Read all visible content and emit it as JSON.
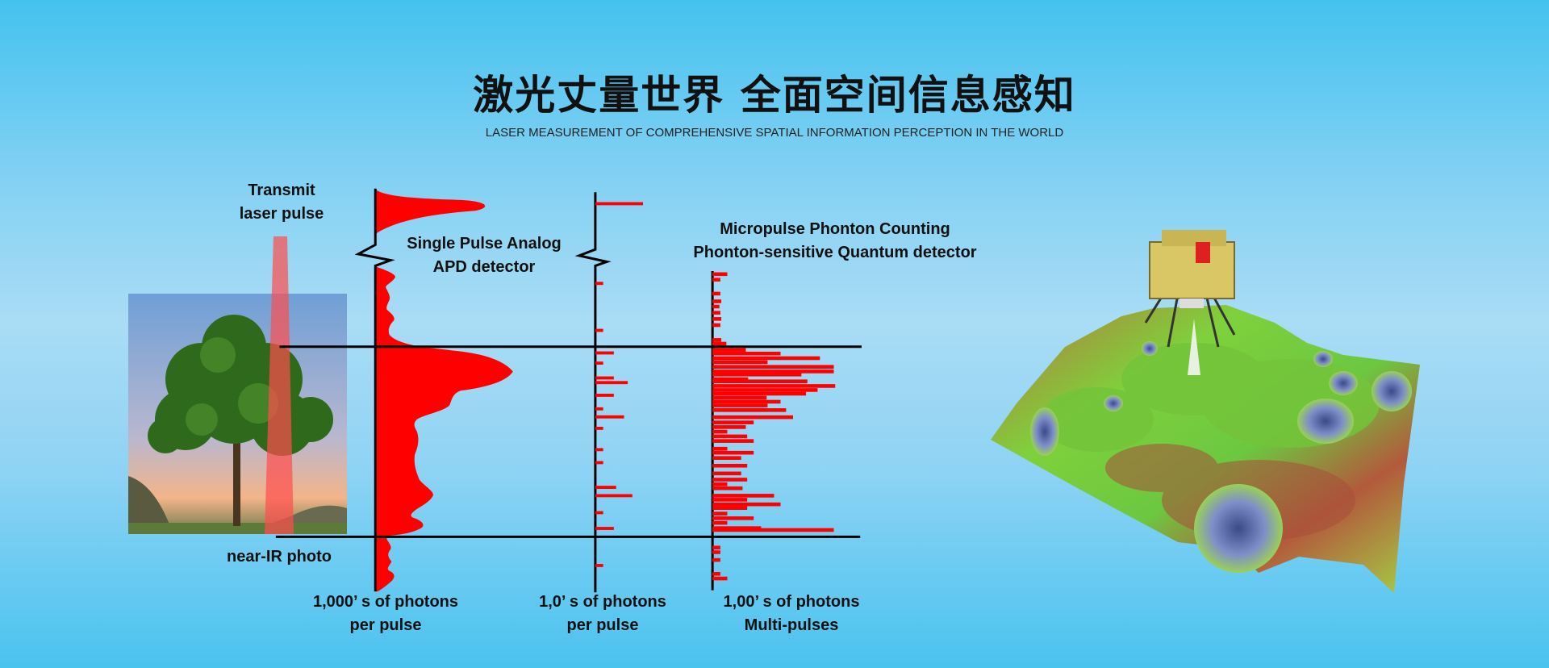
{
  "header": {
    "title": "激光丈量世界 全面空间信息感知",
    "subtitle": "LASER MEASUREMENT OF COMPREHENSIVE SPATIAL INFORMATION PERCEPTION IN THE WORLD"
  },
  "diagram": {
    "transmit_label": [
      "Transmit",
      "laser pulse"
    ],
    "photo_label": "near-IR photo",
    "analog_label": [
      "Single Pulse Analog",
      "APD detector"
    ],
    "micropulse_label": [
      "Micropulse Phonton Counting",
      "Phonton-sensitive Quantum detector"
    ],
    "axis_labels": [
      [
        "1,000’ s of photons",
        "per pulse"
      ],
      [
        "1,0’ s of photons",
        "per pulse"
      ],
      [
        "1,00’ s of photons",
        "Multi-pulses"
      ]
    ],
    "colors": {
      "signal": "#ff0000",
      "axis": "#000000",
      "beam": "#ff5a5a"
    }
  },
  "illustration": {
    "icons": [
      "tree-photo",
      "lunar-lander",
      "lunar-terrain-map"
    ]
  }
}
